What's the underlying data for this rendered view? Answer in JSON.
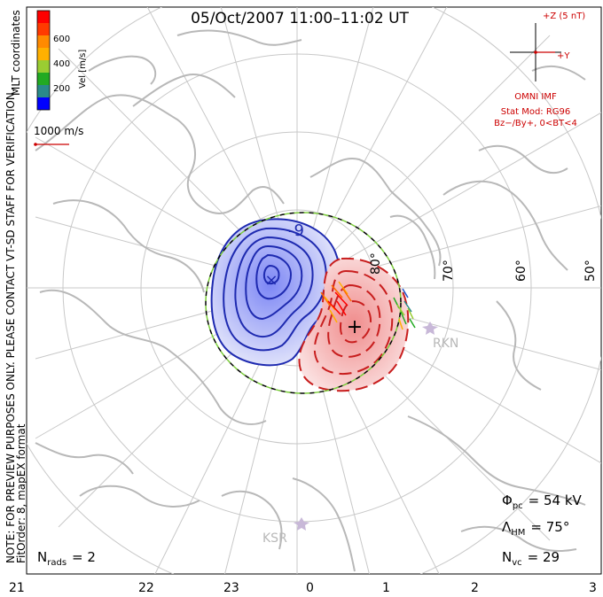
{
  "title": "05/Oct/2007 11:00–11:02 UT",
  "colorbar": {
    "ticks": [
      "600",
      "400",
      "200"
    ],
    "label": "Vel [m/s]",
    "coords": "MLT coordinates",
    "colors": [
      "#ff0000",
      "#ff6a00",
      "#ffb000",
      "#9acd32",
      "#22aa22",
      "#2a8a8a",
      "#2255cc",
      "#0000ff"
    ]
  },
  "vector_scale": {
    "label": "1000 m/s"
  },
  "imf": {
    "z_label": "+Z (5 nT)",
    "y_label": "+Y",
    "source": "OMNI IMF",
    "model_line1": "Stat Mod: RG96",
    "model_line2": "Bz−/By+, 0<BT<4",
    "color": "#cc0000"
  },
  "note": {
    "line1": "NOTE: FOR PREVIEW PURPOSES ONLY. PLEASE CONTACT VT-SD STAFF FOR VERIFICATION.",
    "line2": "FitOrder: 8, mapEX format"
  },
  "lat_labels": [
    "80°",
    "70°",
    "60°",
    "50°"
  ],
  "stations": [
    "RKN",
    "KSR"
  ],
  "contour_label": "-9",
  "stats": {
    "phi_sym": "Φ",
    "phi_sub": "pc",
    "phi_val": "= 54 kV",
    "lambda_sym": "Λ",
    "lambda_sub": "HM",
    "lambda_val": "= 75°",
    "nvc_sym": "N",
    "nvc_sub": "vc",
    "nvc_val": "= 29",
    "nrads_sym": "N",
    "nrads_sub": "rads",
    "nrads_val": "= 2"
  },
  "mlt_labels": [
    "21",
    "22",
    "23",
    "0",
    "1",
    "2",
    "3"
  ],
  "colors": {
    "coast": "#b8b8b8",
    "grid": "#c8c8c8",
    "negative": "#1e2ab0",
    "positive": "#c81e1e",
    "boundary": "#7ccc3c"
  }
}
